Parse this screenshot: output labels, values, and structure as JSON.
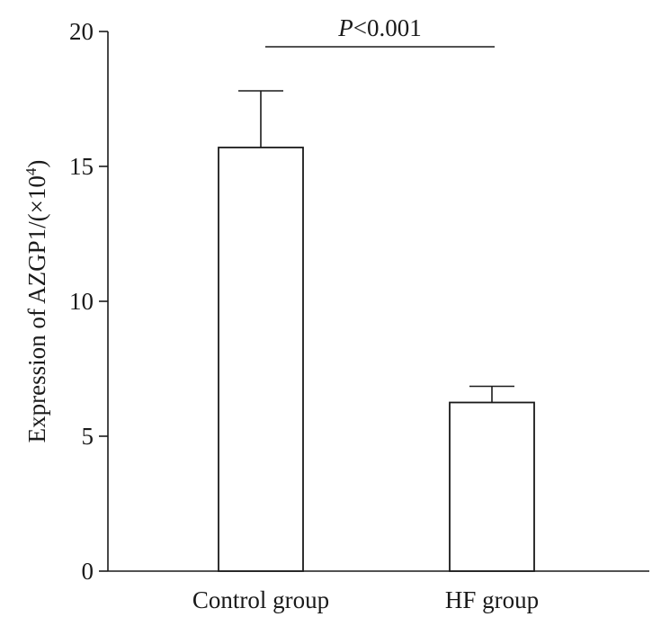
{
  "chart_data": {
    "type": "bar",
    "title": "",
    "xlabel": "",
    "ylabel": {
      "prefix": "Expression of AZGP1/(×10",
      "superscript": "4",
      "suffix": ")"
    },
    "ylim": [
      0,
      20
    ],
    "yticks": [
      0,
      5,
      10,
      15,
      20
    ],
    "categories": [
      "Control group",
      "HF group"
    ],
    "values": [
      15.7,
      6.25
    ],
    "errors": [
      2.1,
      0.6
    ],
    "significance": {
      "italic": "P",
      "rest": "<0.001",
      "between": [
        0,
        1
      ]
    }
  }
}
